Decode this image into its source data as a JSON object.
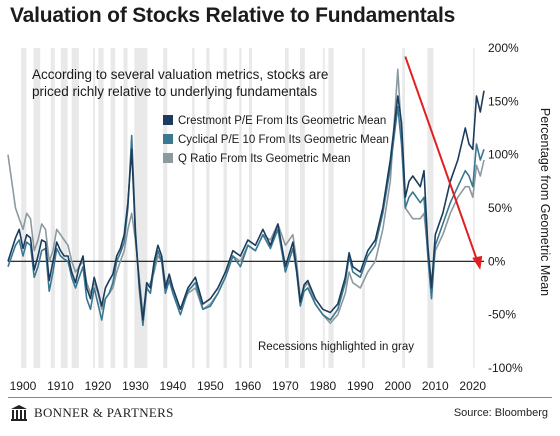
{
  "title": "Valuation of Stocks Relative to Fundamentals",
  "footer": {
    "brand": "BONNER & PARTNERS",
    "source": "Source: Bloomberg"
  },
  "chart_data": {
    "type": "line",
    "subtitle_lines": [
      "According to several valuation metrics, stocks are",
      "priced richly relative to underlying fundamentals"
    ],
    "annotation": "Recessions highlighted in gray",
    "ylabel": "Percentage from Geometric Mean",
    "xlim": [
      1896,
      2023
    ],
    "ylim": [
      -100,
      200
    ],
    "x_ticks": [
      1900,
      1910,
      1920,
      1930,
      1940,
      1950,
      1960,
      1970,
      1980,
      1990,
      2000,
      2010,
      2020
    ],
    "x_tick_labels": [
      "1900",
      "1910",
      "1920",
      "1930",
      "1940",
      "1950",
      "1960",
      "1970",
      "1980",
      "1990",
      "2000",
      "2010",
      "2020"
    ],
    "y_ticks": [
      200,
      150,
      100,
      50,
      0,
      -50,
      -100
    ],
    "y_tick_labels": [
      "200%",
      "150%",
      "100%",
      "50%",
      "0%",
      "-50%",
      "-100%"
    ],
    "legend_position": "top-right",
    "colors": {
      "recession": "#e9e9e9",
      "zero_line": "#111111",
      "arrow": "#e02020"
    },
    "recessions": [
      [
        1899.5,
        1900.9
      ],
      [
        1902.8,
        1904.6
      ],
      [
        1907.4,
        1908.5
      ],
      [
        1910.1,
        1911.9
      ],
      [
        1913.0,
        1914.9
      ],
      [
        1918.7,
        1919.2
      ],
      [
        1920.1,
        1921.5
      ],
      [
        1923.4,
        1924.6
      ],
      [
        1926.8,
        1927.9
      ],
      [
        1929.7,
        1933.2
      ],
      [
        1937.4,
        1938.5
      ],
      [
        1945.1,
        1945.8
      ],
      [
        1948.9,
        1949.8
      ],
      [
        1953.5,
        1954.4
      ],
      [
        1957.7,
        1958.3
      ],
      [
        1960.3,
        1961.1
      ],
      [
        1969.9,
        1970.9
      ],
      [
        1973.9,
        1975.2
      ],
      [
        1980.0,
        1980.5
      ],
      [
        1981.5,
        1982.9
      ],
      [
        1990.5,
        1991.2
      ],
      [
        2001.2,
        2001.9
      ],
      [
        2007.9,
        2009.5
      ],
      [
        2020.1,
        2020.4
      ]
    ],
    "series": [
      {
        "name": "Crestmont P/E From Its Geometric Mean",
        "color": "#1b3c5c",
        "x": [
          1896,
          1898,
          1899,
          1900,
          1901,
          1902,
          1903,
          1904,
          1905,
          1906,
          1907,
          1908,
          1909,
          1910,
          1911,
          1912,
          1913,
          1914,
          1915,
          1916,
          1917,
          1918,
          1919,
          1920,
          1921,
          1922,
          1923,
          1924,
          1925,
          1926,
          1927,
          1928,
          1929,
          1930,
          1931,
          1932,
          1933,
          1934,
          1935,
          1936,
          1937,
          1938,
          1939,
          1940,
          1942,
          1944,
          1946,
          1948,
          1950,
          1952,
          1954,
          1956,
          1958,
          1960,
          1962,
          1964,
          1966,
          1968,
          1970,
          1972,
          1973,
          1974,
          1975,
          1976,
          1978,
          1980,
          1982,
          1984,
          1986,
          1987,
          1988,
          1990,
          1992,
          1994,
          1996,
          1998,
          2000,
          2001,
          2002,
          2003,
          2004,
          2006,
          2007,
          2008,
          2009,
          2010,
          2012,
          2014,
          2016,
          2018,
          2019,
          2020,
          2021,
          2022,
          2023
        ],
        "y": [
          0,
          22,
          30,
          12,
          25,
          22,
          -8,
          5,
          20,
          18,
          -18,
          0,
          18,
          10,
          5,
          5,
          -10,
          -20,
          -5,
          5,
          -25,
          -35,
          -15,
          -28,
          -42,
          -25,
          -18,
          -12,
          5,
          12,
          25,
          55,
          105,
          25,
          -20,
          -55,
          -20,
          -25,
          0,
          15,
          5,
          -25,
          -12,
          -25,
          -45,
          -25,
          -15,
          -40,
          -35,
          -25,
          -10,
          10,
          5,
          20,
          15,
          30,
          15,
          35,
          -5,
          18,
          -8,
          -38,
          -22,
          -18,
          -35,
          -45,
          -48,
          -40,
          -15,
          8,
          -5,
          -10,
          10,
          20,
          50,
          95,
          155,
          130,
          60,
          75,
          80,
          70,
          85,
          15,
          -25,
          25,
          45,
          75,
          95,
          125,
          110,
          105,
          155,
          140,
          160
        ]
      },
      {
        "name": "Cyclical P/E 10 From Its Geometric Mean",
        "color": "#3a7790",
        "x": [
          1896,
          1898,
          1899,
          1900,
          1901,
          1902,
          1903,
          1904,
          1905,
          1906,
          1907,
          1908,
          1909,
          1910,
          1911,
          1912,
          1913,
          1914,
          1915,
          1916,
          1917,
          1918,
          1919,
          1920,
          1921,
          1922,
          1923,
          1924,
          1925,
          1926,
          1927,
          1928,
          1929,
          1930,
          1931,
          1932,
          1933,
          1934,
          1935,
          1936,
          1937,
          1938,
          1939,
          1940,
          1942,
          1944,
          1946,
          1948,
          1950,
          1952,
          1954,
          1956,
          1958,
          1960,
          1962,
          1964,
          1966,
          1968,
          1970,
          1972,
          1973,
          1974,
          1975,
          1976,
          1978,
          1980,
          1982,
          1984,
          1986,
          1987,
          1988,
          1990,
          1992,
          1994,
          1996,
          1998,
          2000,
          2001,
          2002,
          2003,
          2004,
          2006,
          2007,
          2008,
          2009,
          2010,
          2012,
          2014,
          2016,
          2018,
          2019,
          2020,
          2021,
          2022,
          2023
        ],
        "y": [
          -5,
          15,
          20,
          5,
          18,
          15,
          -15,
          -5,
          10,
          12,
          -28,
          -10,
          12,
          5,
          2,
          0,
          -15,
          -25,
          -15,
          -5,
          -35,
          -45,
          -25,
          -40,
          -55,
          -35,
          -30,
          -20,
          0,
          8,
          18,
          50,
          118,
          30,
          -25,
          -60,
          -25,
          -30,
          -5,
          10,
          0,
          -30,
          -18,
          -30,
          -50,
          -28,
          -20,
          -45,
          -42,
          -30,
          -15,
          5,
          -5,
          15,
          10,
          25,
          12,
          30,
          -10,
          12,
          -10,
          -42,
          -28,
          -25,
          -40,
          -50,
          -55,
          -45,
          -20,
          5,
          -10,
          -15,
          5,
          15,
          45,
          88,
          145,
          110,
          50,
          60,
          65,
          55,
          60,
          5,
          -35,
          15,
          35,
          55,
          70,
          85,
          80,
          70,
          110,
          95,
          105
        ]
      },
      {
        "name": "Q Ratio From Its Geometric Mean",
        "color": "#8c9aa0",
        "x": [
          1896,
          1898,
          1899,
          1900,
          1901,
          1902,
          1903,
          1904,
          1905,
          1906,
          1907,
          1908,
          1909,
          1910,
          1911,
          1912,
          1913,
          1914,
          1915,
          1916,
          1917,
          1918,
          1919,
          1920,
          1921,
          1922,
          1923,
          1924,
          1925,
          1926,
          1927,
          1928,
          1929,
          1930,
          1931,
          1932,
          1933,
          1934,
          1935,
          1936,
          1937,
          1938,
          1939,
          1940,
          1942,
          1944,
          1946,
          1948,
          1950,
          1952,
          1954,
          1956,
          1958,
          1960,
          1962,
          1964,
          1966,
          1968,
          1970,
          1972,
          1973,
          1974,
          1975,
          1976,
          1978,
          1980,
          1982,
          1984,
          1986,
          1987,
          1988,
          1990,
          1992,
          1994,
          1996,
          1998,
          2000,
          2001,
          2002,
          2003,
          2004,
          2006,
          2007,
          2008,
          2009,
          2010,
          2012,
          2014,
          2016,
          2018,
          2019,
          2020,
          2021,
          2022,
          2023
        ],
        "y": [
          100,
          50,
          40,
          30,
          45,
          40,
          10,
          20,
          35,
          30,
          0,
          10,
          30,
          25,
          20,
          15,
          0,
          -10,
          -5,
          0,
          -20,
          -30,
          -20,
          -30,
          -45,
          -35,
          -30,
          -25,
          -10,
          0,
          10,
          30,
          45,
          20,
          -15,
          -50,
          -25,
          -20,
          -10,
          5,
          0,
          -20,
          -15,
          -25,
          -45,
          -30,
          -25,
          -45,
          -40,
          -30,
          -15,
          5,
          0,
          15,
          10,
          25,
          20,
          35,
          15,
          25,
          0,
          -35,
          -25,
          -20,
          -40,
          -50,
          -58,
          -50,
          -30,
          -10,
          -20,
          -25,
          -10,
          0,
          30,
          75,
          180,
          120,
          50,
          45,
          40,
          40,
          45,
          10,
          -20,
          10,
          25,
          45,
          60,
          70,
          70,
          60,
          90,
          80,
          95
        ]
      }
    ]
  }
}
